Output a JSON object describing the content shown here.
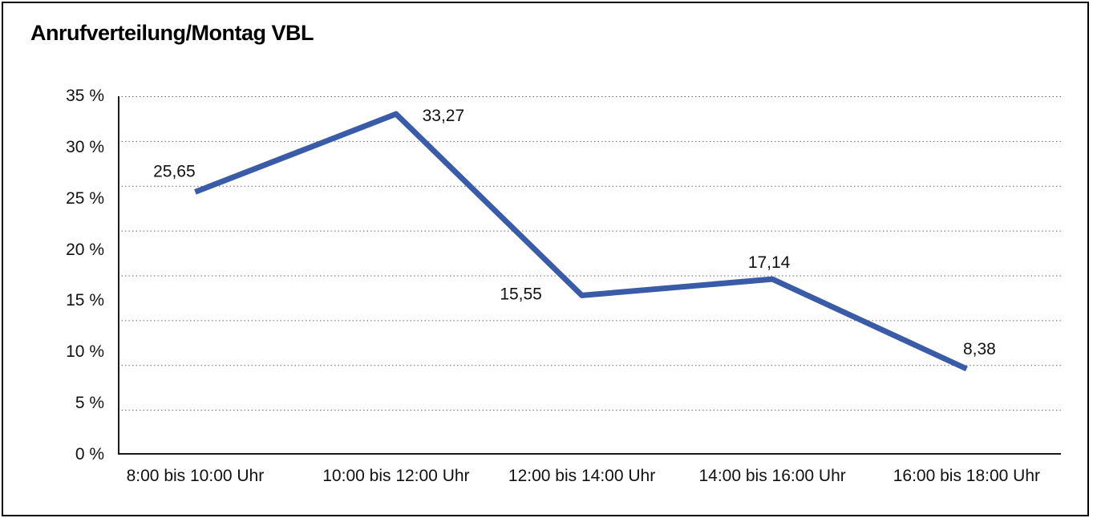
{
  "window": {
    "background_color": "#ffffff",
    "frame_border_color": "#000000"
  },
  "chart_data": {
    "type": "line",
    "title": "Anrufverteilung/Montag VBL",
    "categories": [
      "8:00 bis 10:00 Uhr",
      "10:00 bis 12:00 Uhr",
      "12:00 bis 14:00 Uhr",
      "14:00 bis 16:00 Uhr",
      "16:00 bis 18:00 Uhr"
    ],
    "values": [
      25.65,
      33.27,
      15.55,
      17.14,
      8.38
    ],
    "value_labels": [
      "25,65",
      "33,27",
      "15,55",
      "17,14",
      "8,38"
    ],
    "xlabel": "",
    "ylabel": "",
    "ylim": [
      0,
      35
    ],
    "y_tick_labels": [
      "35 %",
      "30 %",
      "25 %",
      "20 %",
      "15 %",
      "10 %",
      "5 %",
      "0 %"
    ],
    "grid": "horizontal-dotted",
    "gridline_count": 9,
    "legend": "none",
    "line_color": "#3A5BA7",
    "gridline_color": "#666666",
    "axis_color": "#1a1a1a",
    "text_color": "#111111"
  }
}
